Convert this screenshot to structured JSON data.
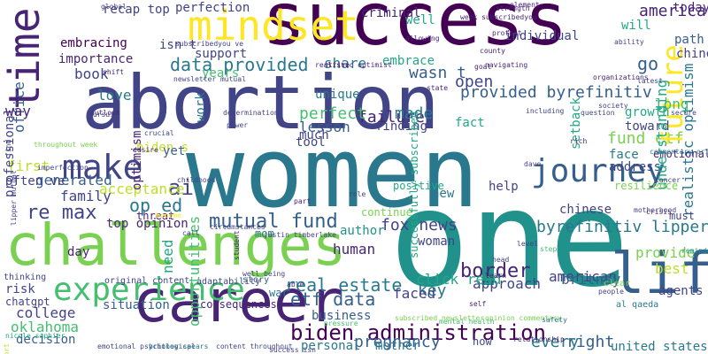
{
  "word_cloud": {
    "words": [
      "success",
      "abortion",
      "women",
      "one",
      "challenges",
      "career",
      "life",
      "time",
      "mindset",
      "experience",
      "make",
      "journey",
      "data provided",
      "mutual fund",
      "biden administration",
      "etf data",
      "op ed",
      "re max",
      "fund etf",
      "border",
      "future",
      "provided byrefinitiv",
      "byrefinitiv lipper",
      "realistic optimism",
      "real estate",
      "failure",
      "perfect",
      "lesson",
      "america",
      "go",
      "ai",
      "oklahoma",
      "decision",
      "pregnancy",
      "fox news",
      "author",
      "approach",
      "american",
      "woman",
      "britney",
      "key",
      "mother",
      "business",
      "college",
      "personal",
      "united states",
      "right",
      "every",
      "now",
      "consequences",
      "situation",
      "human",
      "day",
      "positive",
      "made",
      "fact",
      "open",
      "wasn t",
      "share",
      "embrace",
      "support",
      "years",
      "book",
      "love",
      "importance",
      "embracing",
      "recap top",
      "perfection",
      "isn t",
      "criminal",
      "well",
      "individual",
      "will",
      "today s",
      "path",
      "unique",
      "finding",
      "tool",
      "much",
      "toward",
      "growth",
      "face",
      "address",
      "emotional",
      "long",
      "setback",
      "understanding",
      "resilience",
      "help",
      "new",
      "continue",
      "chinese",
      "provide",
      "best",
      "agents",
      "must",
      "risk",
      "chatgpt",
      "mom",
      "thinking",
      "original content",
      "adaptability",
      "story",
      "war",
      "generated",
      "first",
      "often ve",
      "family",
      "acceptance",
      "need",
      "opportunities",
      "threat",
      "top opinion",
      "biden s",
      "work",
      "optimism",
      "office",
      "professional",
      "way",
      "yet",
      "click read",
      "faced",
      "successfully subscribed",
      "newsletter mutual",
      "realistic optimist",
      "global",
      "subscribedyou ve",
      "week subscribedyou",
      "allowing",
      "ability",
      "organizations",
      "motherhood",
      "crisis",
      "clear",
      "reminder",
      "al qaeda",
      "people",
      "level",
      "step",
      "effort",
      "emotional psychological",
      "britney spears",
      "content throughout",
      "success isn",
      "student",
      "justin timberlake",
      "chinese mobsters",
      "secure",
      "latest",
      "society",
      "determination",
      "power",
      "desire",
      "throughout week",
      "outlook",
      "pursuit",
      "find",
      "imperfection",
      "lipper mutual",
      "nicole saphier",
      "pressure",
      "mental health",
      "opinion commentary",
      "relationship",
      "safety",
      "commentary original",
      "cancer",
      "question",
      "dave",
      "head",
      "learn",
      "call",
      "become",
      "part",
      "role",
      "strive",
      "strength",
      "navigating",
      "element",
      "protect",
      "state",
      "goal",
      "including",
      "shift",
      "county",
      "self",
      "rich",
      "able",
      "subscribed newsletter",
      "crucial",
      "childhood",
      "circumstances",
      "well being"
    ]
  }
}
